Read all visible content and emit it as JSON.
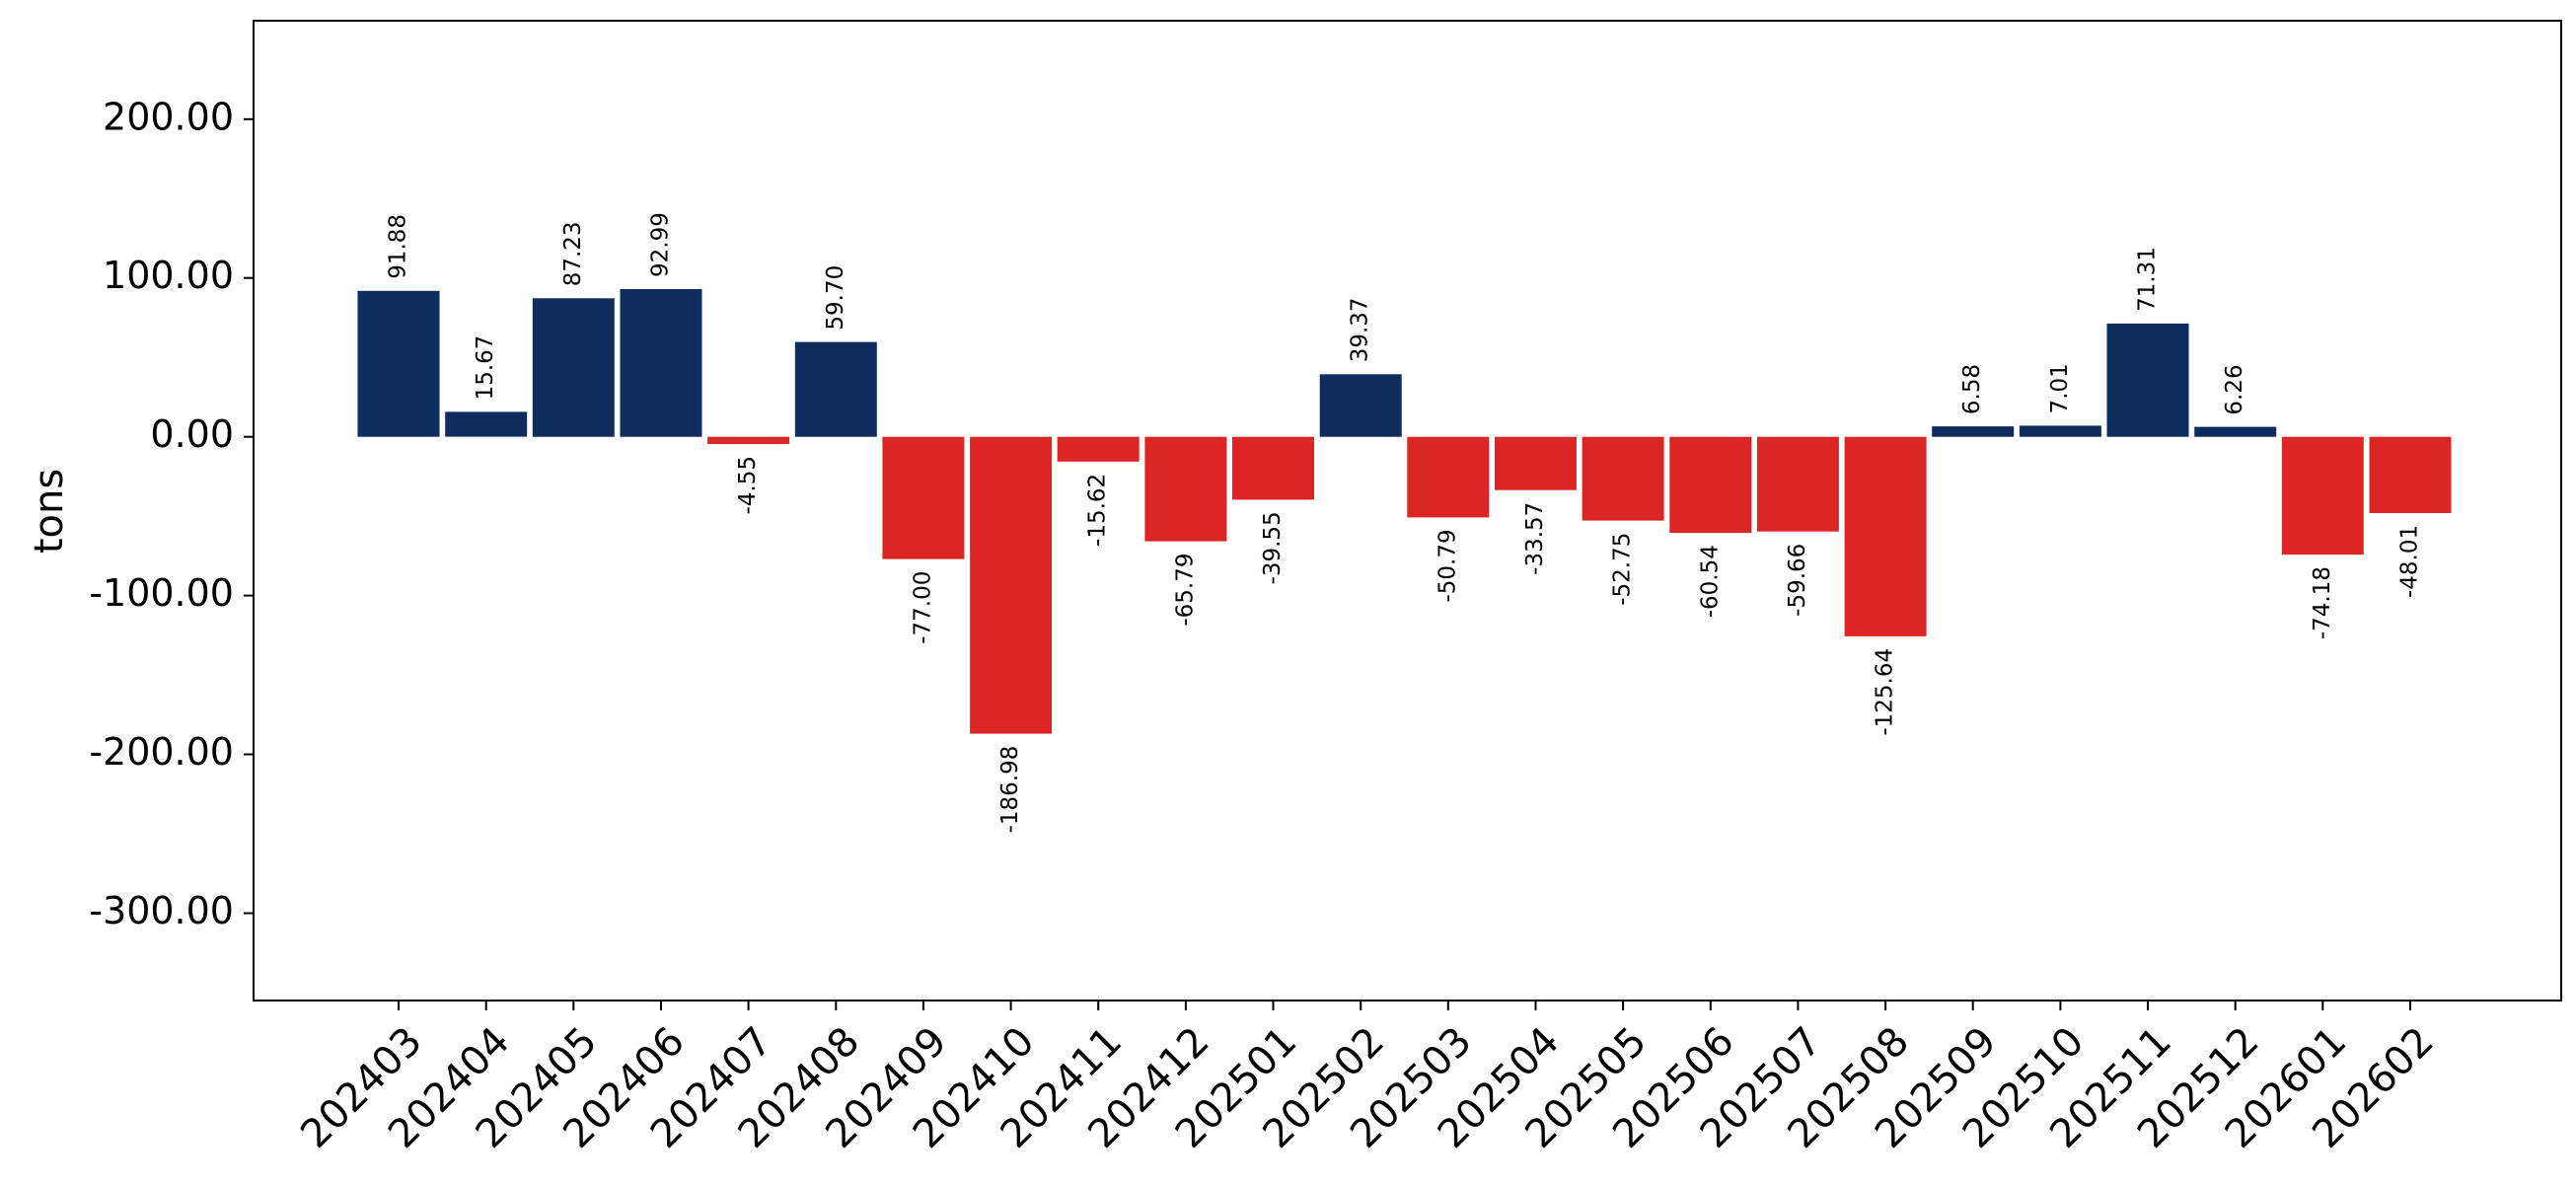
{
  "chart_data": {
    "type": "bar",
    "title": "",
    "xlabel": "",
    "ylabel": "tons",
    "ylim": [
      -355,
      262
    ],
    "grid": false,
    "legend": false,
    "y_ticks": [
      200,
      100,
      0,
      -100,
      -200,
      -300
    ],
    "y_tick_labels": [
      "200.00",
      "100.00",
      "0.00",
      "-100.00",
      "-200.00",
      "-300.00"
    ],
    "colors": {
      "positive": "#0e2d5e",
      "negative": "#dc2626"
    },
    "categories": [
      "202403",
      "202404",
      "202405",
      "202406",
      "202407",
      "202408",
      "202409",
      "202410",
      "202411",
      "202412",
      "202501",
      "202502",
      "202503",
      "202504",
      "202505",
      "202506",
      "202507",
      "202508",
      "202509",
      "202510",
      "202511",
      "202512",
      "202601",
      "202602"
    ],
    "values": [
      91.88,
      15.67,
      87.23,
      92.99,
      -4.55,
      59.7,
      -77.0,
      -186.98,
      -15.62,
      -65.79,
      -39.55,
      39.37,
      -50.79,
      -33.57,
      -52.75,
      -60.54,
      -59.66,
      -125.64,
      6.58,
      7.01,
      71.31,
      6.26,
      -74.18,
      -48.01
    ],
    "value_labels": [
      "91.88",
      "15.67",
      "87.23",
      "92.99",
      "-4.55",
      "59.70",
      "-77.00",
      "-186.98",
      "-15.62",
      "-65.79",
      "-39.55",
      "39.37",
      "-50.79",
      "-33.57",
      "-52.75",
      "-60.54",
      "-59.66",
      "-125.64",
      "6.58",
      "7.01",
      "71.31",
      "6.26",
      "-74.18",
      "-48.01"
    ]
  }
}
